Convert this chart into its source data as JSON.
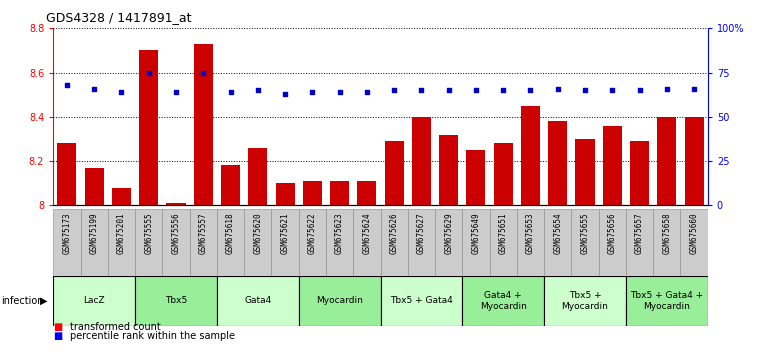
{
  "title": "GDS4328 / 1417891_at",
  "samples": [
    "GSM675173",
    "GSM675199",
    "GSM675201",
    "GSM675555",
    "GSM675556",
    "GSM675557",
    "GSM675618",
    "GSM675620",
    "GSM675621",
    "GSM675622",
    "GSM675623",
    "GSM675624",
    "GSM675626",
    "GSM675627",
    "GSM675629",
    "GSM675649",
    "GSM675651",
    "GSM675653",
    "GSM675654",
    "GSM675655",
    "GSM675656",
    "GSM675657",
    "GSM675658",
    "GSM675660"
  ],
  "transformed_count": [
    8.28,
    8.17,
    8.08,
    8.7,
    8.01,
    8.73,
    8.18,
    8.26,
    8.1,
    8.11,
    8.11,
    8.11,
    8.29,
    8.4,
    8.32,
    8.25,
    8.28,
    8.45,
    8.38,
    8.3,
    8.36,
    8.29,
    8.4,
    8.4
  ],
  "percentile_rank": [
    68,
    66,
    64,
    75,
    64,
    75,
    64,
    65,
    63,
    64,
    64,
    64,
    65,
    65,
    65,
    65,
    65,
    65,
    66,
    65,
    65,
    65,
    66,
    66
  ],
  "groups": [
    {
      "label": "LacZ",
      "start": 0,
      "end": 3,
      "color": "#ccffcc"
    },
    {
      "label": "Tbx5",
      "start": 3,
      "end": 6,
      "color": "#99ee99"
    },
    {
      "label": "Gata4",
      "start": 6,
      "end": 9,
      "color": "#ccffcc"
    },
    {
      "label": "Myocardin",
      "start": 9,
      "end": 12,
      "color": "#99ee99"
    },
    {
      "label": "Tbx5 + Gata4",
      "start": 12,
      "end": 15,
      "color": "#ccffcc"
    },
    {
      "label": "Gata4 +\nMyocardin",
      "start": 15,
      "end": 18,
      "color": "#99ee99"
    },
    {
      "label": "Tbx5 +\nMyocardin",
      "start": 18,
      "end": 21,
      "color": "#ccffcc"
    },
    {
      "label": "Tbx5 + Gata4 +\nMyocardin",
      "start": 21,
      "end": 24,
      "color": "#99ee99"
    }
  ],
  "ylim_left": [
    8.0,
    8.8
  ],
  "ylim_right": [
    0,
    100
  ],
  "bar_color": "#cc0000",
  "dot_color": "#0000cc",
  "background_color": "#ffffff",
  "infection_label": "infection"
}
